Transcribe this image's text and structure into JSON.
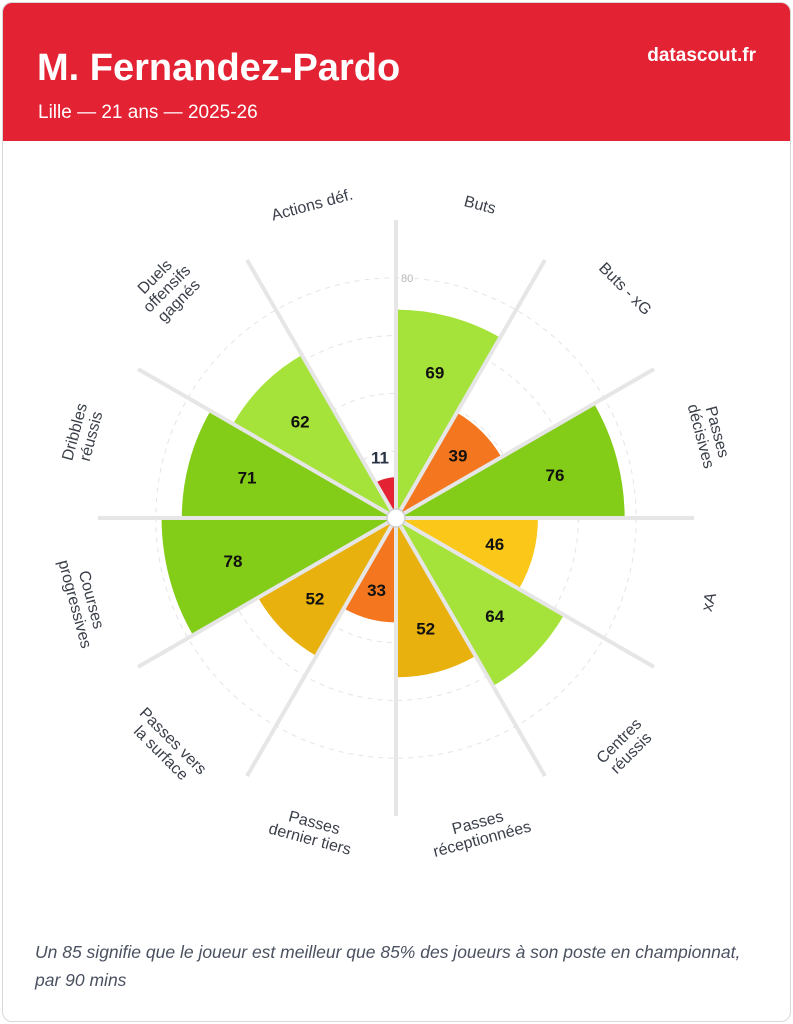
{
  "header": {
    "player_name": "M. Fernandez-Pardo",
    "subtitle": "Lille — 21 ans — 2025-26",
    "brand": "datascout.fr",
    "background_color": "#e32233"
  },
  "footnote": "Un 85 signifie que le joueur est meilleur que 85% des joueurs à son poste en championnat, par 90 mins",
  "chart_data": {
    "type": "polar_bar",
    "direction": "clockwise",
    "start": "top",
    "rlim": [
      0,
      100
    ],
    "radial_tick_labels": [
      "80"
    ],
    "radial_gridlines": [
      20,
      40,
      60,
      80
    ],
    "categories": [
      "Buts",
      "Buts - xG",
      "Passes décisives",
      "xA",
      "Centres réussis",
      "Passes réceptionnées",
      "Passes dernier tiers",
      "Passes vers la surface",
      "Courses progressives",
      "Dribbles réussis",
      "Duels offensifs gagnés",
      "Actions déf."
    ],
    "values": [
      69,
      39,
      76,
      46,
      64,
      52,
      33,
      52,
      78,
      71,
      62,
      11
    ],
    "value_labels": [
      "69",
      "39",
      "76",
      "46",
      "64",
      "52",
      "33",
      "52",
      "78",
      "71",
      "62",
      "11"
    ],
    "colors": [
      "#a6e33a",
      "#f4771f",
      "#83cc17",
      "#fbc81a",
      "#a6e33a",
      "#e9b10e",
      "#f4771f",
      "#e9b10e",
      "#83cc17",
      "#83cc17",
      "#a6e33a",
      "#e32233"
    ]
  }
}
